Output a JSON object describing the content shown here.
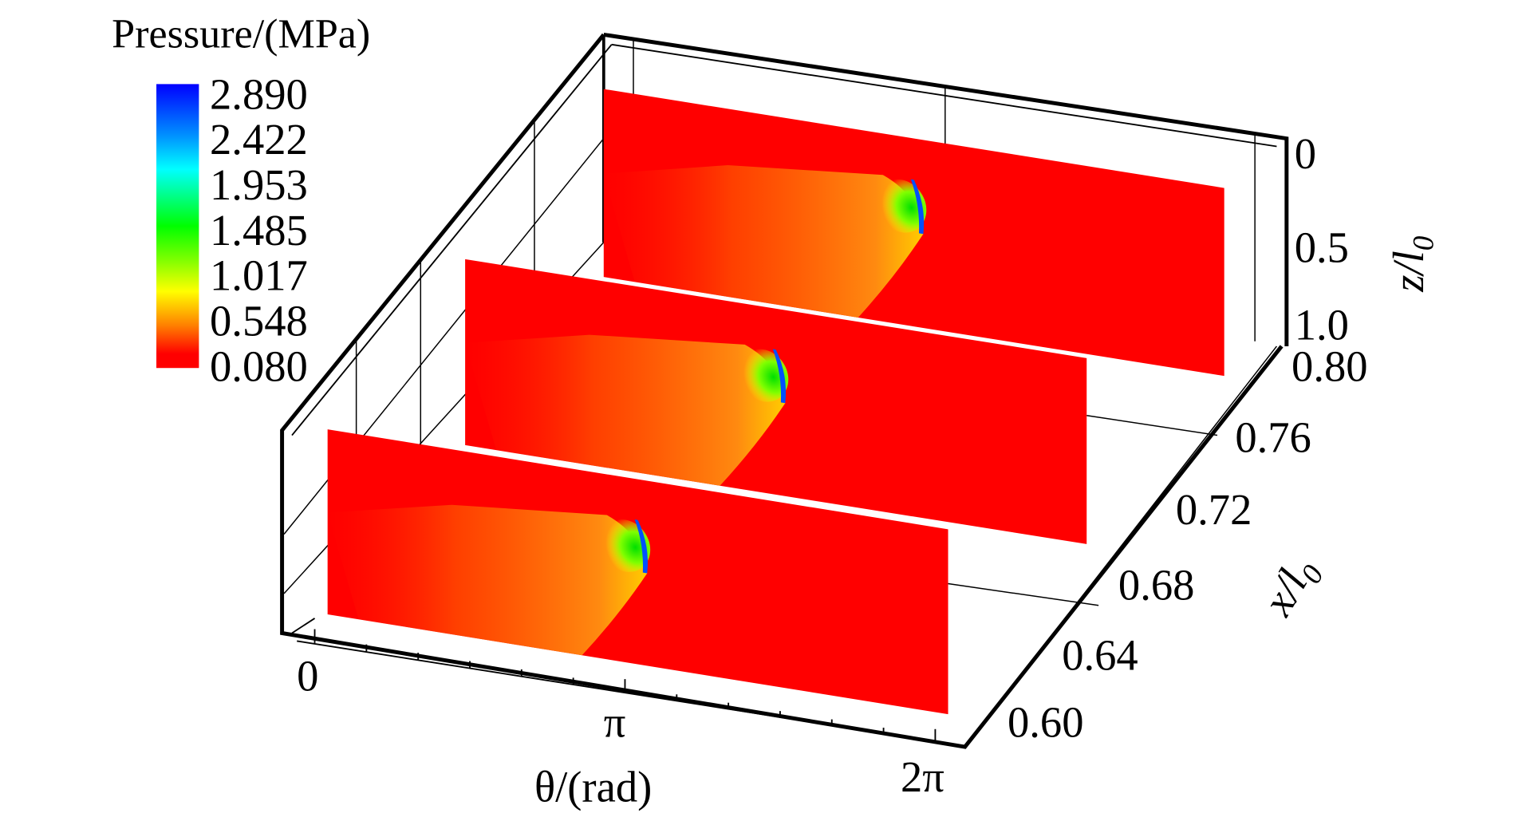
{
  "chart_data": {
    "type": "heatmap",
    "title": "Pressure/(MPa)",
    "colorbar": {
      "label": "Pressure/(MPa)",
      "ticks": [
        "2.890",
        "2.422",
        "1.953",
        "1.485",
        "1.017",
        "0.548",
        "0.080"
      ],
      "range": [
        0.08,
        2.89
      ],
      "colors": [
        "#0000ff",
        "#00a0ff",
        "#00ffff",
        "#00ff00",
        "#a0ff00",
        "#ffff00",
        "#ff8000",
        "#ff0000"
      ]
    },
    "axes": {
      "theta": {
        "label": "θ/(rad)",
        "ticks": [
          "0",
          "π",
          "2π"
        ],
        "range": [
          0,
          6.2832
        ]
      },
      "x": {
        "label": "x/l",
        "subscript": "0",
        "ticks": [
          "0.60",
          "0.64",
          "0.68",
          "0.72",
          "0.76",
          "0.80"
        ],
        "range": [
          0.6,
          0.8
        ]
      },
      "z": {
        "label": "z/l",
        "subscript": "0",
        "ticks": [
          "0",
          "0.5",
          "1.0"
        ],
        "range": [
          0,
          1.0
        ]
      }
    },
    "slices": [
      {
        "name": "slice-front",
        "x": 0.62
      },
      {
        "name": "slice-middle",
        "x": 0.7
      },
      {
        "name": "slice-back",
        "x": 0.78
      }
    ],
    "background_value_color": "#ff0000"
  }
}
